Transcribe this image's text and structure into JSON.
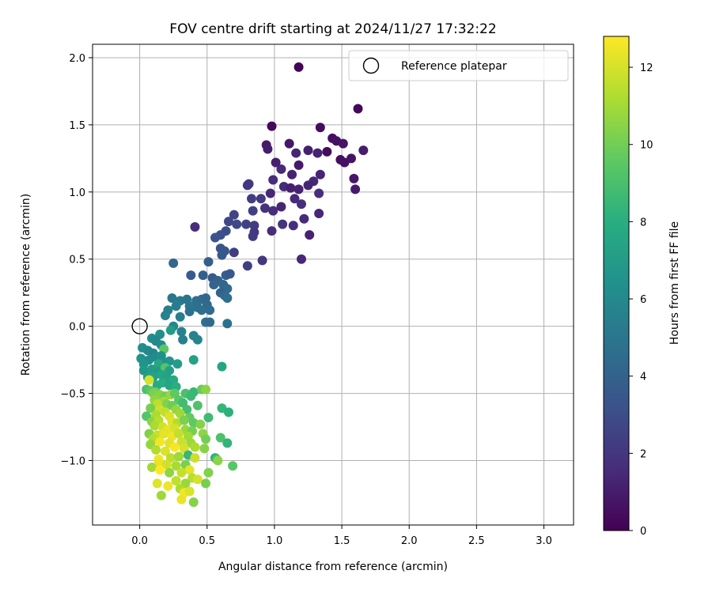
{
  "chart_data": {
    "type": "scatter",
    "title": "FOV centre drift starting at 2024/11/27 17:32:22",
    "xlabel": "Angular distance from reference (arcmin)",
    "ylabel": "Rotation from reference (arcmin)",
    "xlim": [
      -0.35,
      3.22
    ],
    "ylim": [
      -1.48,
      2.1
    ],
    "x_ticks": [
      0.0,
      0.5,
      1.0,
      1.5,
      2.0,
      2.5,
      3.0
    ],
    "x_tick_labels": [
      "0.0",
      "0.5",
      "1.0",
      "1.5",
      "2.0",
      "2.5",
      "3.0"
    ],
    "y_ticks": [
      -1.0,
      -0.5,
      0.0,
      0.5,
      1.0,
      1.5,
      2.0
    ],
    "y_tick_labels": [
      "−1.0",
      "−0.5",
      "0.0",
      "0.5",
      "1.0",
      "1.5",
      "2.0"
    ],
    "grid": true,
    "legend": {
      "position": "top-right",
      "entries": [
        {
          "label": "Reference platepar",
          "marker": "open-circle"
        }
      ]
    },
    "reference_point": {
      "x": 0.0,
      "y": 0.0
    },
    "colorbar": {
      "label": "Hours from first FF file",
      "colormap": "viridis",
      "range": [
        0,
        12.8
      ],
      "ticks": [
        0,
        2,
        4,
        6,
        8,
        10,
        12
      ],
      "tick_labels": [
        "0",
        "2",
        "4",
        "6",
        "8",
        "10",
        "12"
      ]
    },
    "points": [
      {
        "x": 1.18,
        "y": 1.93,
        "h": 0.1
      },
      {
        "x": 1.62,
        "y": 1.62,
        "h": 0.2
      },
      {
        "x": 0.98,
        "y": 1.49,
        "h": 0.3
      },
      {
        "x": 1.34,
        "y": 1.48,
        "h": 0.4
      },
      {
        "x": 1.43,
        "y": 1.4,
        "h": 0.5
      },
      {
        "x": 1.46,
        "y": 1.38,
        "h": 0.6
      },
      {
        "x": 1.51,
        "y": 1.36,
        "h": 0.7
      },
      {
        "x": 1.11,
        "y": 1.36,
        "h": 0.8
      },
      {
        "x": 0.94,
        "y": 1.35,
        "h": 0.9
      },
      {
        "x": 1.66,
        "y": 1.31,
        "h": 1.0
      },
      {
        "x": 1.25,
        "y": 1.31,
        "h": 1.1
      },
      {
        "x": 1.32,
        "y": 1.29,
        "h": 1.2
      },
      {
        "x": 1.16,
        "y": 1.29,
        "h": 1.3
      },
      {
        "x": 0.95,
        "y": 1.32,
        "h": 1.0
      },
      {
        "x": 1.39,
        "y": 1.3,
        "h": 0.4
      },
      {
        "x": 1.49,
        "y": 1.24,
        "h": 0.5
      },
      {
        "x": 1.52,
        "y": 1.22,
        "h": 0.6
      },
      {
        "x": 1.57,
        "y": 1.25,
        "h": 0.7
      },
      {
        "x": 1.01,
        "y": 1.22,
        "h": 1.1
      },
      {
        "x": 1.18,
        "y": 1.2,
        "h": 0.9
      },
      {
        "x": 1.05,
        "y": 1.17,
        "h": 1.5
      },
      {
        "x": 1.13,
        "y": 1.13,
        "h": 1.2
      },
      {
        "x": 1.34,
        "y": 1.13,
        "h": 1.3
      },
      {
        "x": 1.59,
        "y": 1.1,
        "h": 0.8
      },
      {
        "x": 1.29,
        "y": 1.08,
        "h": 1.4
      },
      {
        "x": 0.99,
        "y": 1.09,
        "h": 1.6
      },
      {
        "x": 1.07,
        "y": 1.04,
        "h": 1.5
      },
      {
        "x": 1.12,
        "y": 1.03,
        "h": 1.1
      },
      {
        "x": 1.18,
        "y": 1.02,
        "h": 1.2
      },
      {
        "x": 1.25,
        "y": 1.05,
        "h": 1.3
      },
      {
        "x": 1.6,
        "y": 1.02,
        "h": 0.9
      },
      {
        "x": 0.97,
        "y": 0.99,
        "h": 1.4
      },
      {
        "x": 1.33,
        "y": 0.99,
        "h": 1.6
      },
      {
        "x": 0.81,
        "y": 1.06,
        "h": 2.2
      },
      {
        "x": 0.8,
        "y": 1.05,
        "h": 2.0
      },
      {
        "x": 1.15,
        "y": 0.95,
        "h": 1.5
      },
      {
        "x": 0.83,
        "y": 0.95,
        "h": 2.3
      },
      {
        "x": 0.9,
        "y": 0.95,
        "h": 2.1
      },
      {
        "x": 1.2,
        "y": 0.91,
        "h": 1.7
      },
      {
        "x": 1.05,
        "y": 0.89,
        "h": 1.3
      },
      {
        "x": 0.93,
        "y": 0.88,
        "h": 1.8
      },
      {
        "x": 0.99,
        "y": 0.86,
        "h": 1.6
      },
      {
        "x": 0.84,
        "y": 0.86,
        "h": 2.4
      },
      {
        "x": 0.7,
        "y": 0.83,
        "h": 2.6
      },
      {
        "x": 1.33,
        "y": 0.84,
        "h": 1.4
      },
      {
        "x": 1.22,
        "y": 0.8,
        "h": 1.5
      },
      {
        "x": 0.66,
        "y": 0.78,
        "h": 2.7
      },
      {
        "x": 0.72,
        "y": 0.76,
        "h": 2.8
      },
      {
        "x": 0.79,
        "y": 0.76,
        "h": 2.5
      },
      {
        "x": 1.06,
        "y": 0.76,
        "h": 1.9
      },
      {
        "x": 1.14,
        "y": 0.75,
        "h": 1.7
      },
      {
        "x": 0.85,
        "y": 0.75,
        "h": 2.3
      },
      {
        "x": 0.41,
        "y": 0.74,
        "h": 1.6
      },
      {
        "x": 0.64,
        "y": 0.71,
        "h": 3.0
      },
      {
        "x": 0.6,
        "y": 0.68,
        "h": 3.1
      },
      {
        "x": 0.85,
        "y": 0.7,
        "h": 2.1
      },
      {
        "x": 0.98,
        "y": 0.71,
        "h": 1.6
      },
      {
        "x": 1.26,
        "y": 0.68,
        "h": 1.2
      },
      {
        "x": 0.84,
        "y": 0.67,
        "h": 2.2
      },
      {
        "x": 0.56,
        "y": 0.66,
        "h": 3.2
      },
      {
        "x": 0.6,
        "y": 0.58,
        "h": 3.3
      },
      {
        "x": 0.63,
        "y": 0.56,
        "h": 3.4
      },
      {
        "x": 0.7,
        "y": 0.55,
        "h": 2.3
      },
      {
        "x": 0.61,
        "y": 0.53,
        "h": 3.5
      },
      {
        "x": 0.91,
        "y": 0.49,
        "h": 2.0
      },
      {
        "x": 1.2,
        "y": 0.5,
        "h": 1.4
      },
      {
        "x": 0.51,
        "y": 0.48,
        "h": 3.8
      },
      {
        "x": 0.25,
        "y": 0.47,
        "h": 4.2
      },
      {
        "x": 0.8,
        "y": 0.45,
        "h": 2.4
      },
      {
        "x": 0.38,
        "y": 0.38,
        "h": 3.7
      },
      {
        "x": 0.47,
        "y": 0.38,
        "h": 3.9
      },
      {
        "x": 0.54,
        "y": 0.36,
        "h": 3.6
      },
      {
        "x": 0.64,
        "y": 0.38,
        "h": 3.8
      },
      {
        "x": 0.67,
        "y": 0.39,
        "h": 3.5
      },
      {
        "x": 0.58,
        "y": 0.34,
        "h": 4.0
      },
      {
        "x": 0.55,
        "y": 0.31,
        "h": 4.1
      },
      {
        "x": 0.62,
        "y": 0.31,
        "h": 4.2
      },
      {
        "x": 0.65,
        "y": 0.28,
        "h": 4.4
      },
      {
        "x": 0.6,
        "y": 0.25,
        "h": 3.9
      },
      {
        "x": 0.63,
        "y": 0.23,
        "h": 4.3
      },
      {
        "x": 0.65,
        "y": 0.21,
        "h": 4.6
      },
      {
        "x": 0.24,
        "y": 0.21,
        "h": 5.0
      },
      {
        "x": 0.3,
        "y": 0.19,
        "h": 5.2
      },
      {
        "x": 0.35,
        "y": 0.2,
        "h": 4.9
      },
      {
        "x": 0.42,
        "y": 0.19,
        "h": 4.7
      },
      {
        "x": 0.46,
        "y": 0.2,
        "h": 4.5
      },
      {
        "x": 0.49,
        "y": 0.21,
        "h": 4.3
      },
      {
        "x": 0.37,
        "y": 0.15,
        "h": 5.0
      },
      {
        "x": 0.43,
        "y": 0.14,
        "h": 4.8
      },
      {
        "x": 0.5,
        "y": 0.16,
        "h": 4.4
      },
      {
        "x": 0.27,
        "y": 0.15,
        "h": 5.3
      },
      {
        "x": 0.21,
        "y": 0.12,
        "h": 5.5
      },
      {
        "x": 0.37,
        "y": 0.11,
        "h": 4.8
      },
      {
        "x": 0.46,
        "y": 0.12,
        "h": 4.6
      },
      {
        "x": 0.52,
        "y": 0.12,
        "h": 4.5
      },
      {
        "x": 0.19,
        "y": 0.08,
        "h": 5.6
      },
      {
        "x": 0.3,
        "y": 0.07,
        "h": 5.4
      },
      {
        "x": 0.49,
        "y": 0.03,
        "h": 4.7
      },
      {
        "x": 0.52,
        "y": 0.03,
        "h": 4.4
      },
      {
        "x": 0.65,
        "y": 0.02,
        "h": 4.8
      },
      {
        "x": 0.25,
        "y": 0.0,
        "h": 5.9
      },
      {
        "x": 0.31,
        "y": -0.04,
        "h": 5.7
      },
      {
        "x": 0.15,
        "y": -0.06,
        "h": 6.3
      },
      {
        "x": 0.4,
        "y": -0.07,
        "h": 5.6
      },
      {
        "x": 0.32,
        "y": -0.1,
        "h": 5.5
      },
      {
        "x": 0.43,
        "y": -0.1,
        "h": 5.8
      },
      {
        "x": 0.23,
        "y": -0.03,
        "h": 7.0
      },
      {
        "x": 0.09,
        "y": -0.09,
        "h": 6.2
      },
      {
        "x": 0.12,
        "y": -0.11,
        "h": 6.0
      },
      {
        "x": 0.16,
        "y": -0.14,
        "h": 6.1
      },
      {
        "x": 0.02,
        "y": -0.16,
        "h": 6.3
      },
      {
        "x": 0.06,
        "y": -0.18,
        "h": 6.0
      },
      {
        "x": 0.1,
        "y": -0.2,
        "h": 5.8
      },
      {
        "x": 0.18,
        "y": -0.17,
        "h": 9.5
      },
      {
        "x": 0.01,
        "y": -0.24,
        "h": 6.5
      },
      {
        "x": 0.07,
        "y": -0.25,
        "h": 6.2
      },
      {
        "x": 0.12,
        "y": -0.23,
        "h": 6.1
      },
      {
        "x": 0.16,
        "y": -0.22,
        "h": 6.4
      },
      {
        "x": 0.4,
        "y": -0.25,
        "h": 7.3
      },
      {
        "x": 0.03,
        "y": -0.28,
        "h": 6.6
      },
      {
        "x": 0.19,
        "y": -0.27,
        "h": 6.4
      },
      {
        "x": 0.22,
        "y": -0.26,
        "h": 6.7
      },
      {
        "x": 0.28,
        "y": -0.28,
        "h": 7.0
      },
      {
        "x": 0.14,
        "y": -0.28,
        "h": 7.5
      },
      {
        "x": 0.61,
        "y": -0.3,
        "h": 7.5
      },
      {
        "x": 0.03,
        "y": -0.33,
        "h": 6.8
      },
      {
        "x": 0.09,
        "y": -0.32,
        "h": 7.0
      },
      {
        "x": 0.14,
        "y": -0.34,
        "h": 6.9
      },
      {
        "x": 0.19,
        "y": -0.31,
        "h": 9.3
      },
      {
        "x": 0.22,
        "y": -0.33,
        "h": 7.2
      },
      {
        "x": 0.06,
        "y": -0.38,
        "h": 7.1
      },
      {
        "x": 0.1,
        "y": -0.38,
        "h": 7.4
      },
      {
        "x": 0.16,
        "y": -0.36,
        "h": 7.6
      },
      {
        "x": 0.2,
        "y": -0.38,
        "h": 7.3
      },
      {
        "x": 0.25,
        "y": -0.4,
        "h": 7.8
      },
      {
        "x": 0.07,
        "y": -0.4,
        "h": 12.0
      },
      {
        "x": 0.13,
        "y": -0.44,
        "h": 7.7
      },
      {
        "x": 0.17,
        "y": -0.42,
        "h": 7.9
      },
      {
        "x": 0.22,
        "y": -0.44,
        "h": 7.5
      },
      {
        "x": 0.27,
        "y": -0.45,
        "h": 8.0
      },
      {
        "x": 0.05,
        "y": -0.47,
        "h": 9.0
      },
      {
        "x": 0.08,
        "y": -0.48,
        "h": 9.5
      },
      {
        "x": 0.12,
        "y": -0.49,
        "h": 9.8
      },
      {
        "x": 0.4,
        "y": -0.49,
        "h": 8.5
      },
      {
        "x": 0.46,
        "y": -0.47,
        "h": 9.8
      },
      {
        "x": 0.49,
        "y": -0.47,
        "h": 10.5
      },
      {
        "x": 0.1,
        "y": -0.5,
        "h": 10.2
      },
      {
        "x": 0.15,
        "y": -0.51,
        "h": 10.4
      },
      {
        "x": 0.19,
        "y": -0.52,
        "h": 10.0
      },
      {
        "x": 0.23,
        "y": -0.51,
        "h": 10.8
      },
      {
        "x": 0.26,
        "y": -0.5,
        "h": 9.6
      },
      {
        "x": 0.34,
        "y": -0.5,
        "h": 9.0
      },
      {
        "x": 0.38,
        "y": -0.52,
        "h": 8.6
      },
      {
        "x": 0.11,
        "y": -0.55,
        "h": 10.6
      },
      {
        "x": 0.18,
        "y": -0.56,
        "h": 11.0
      },
      {
        "x": 0.29,
        "y": -0.55,
        "h": 9.4
      },
      {
        "x": 0.13,
        "y": -0.58,
        "h": 11.5
      },
      {
        "x": 0.2,
        "y": -0.58,
        "h": 10.3
      },
      {
        "x": 0.24,
        "y": -0.59,
        "h": 9.9
      },
      {
        "x": 0.32,
        "y": -0.57,
        "h": 8.8
      },
      {
        "x": 0.43,
        "y": -0.59,
        "h": 9.2
      },
      {
        "x": 0.08,
        "y": -0.61,
        "h": 10.1
      },
      {
        "x": 0.15,
        "y": -0.62,
        "h": 11.8
      },
      {
        "x": 0.27,
        "y": -0.62,
        "h": 10.7
      },
      {
        "x": 0.35,
        "y": -0.62,
        "h": 8.9
      },
      {
        "x": 0.61,
        "y": -0.61,
        "h": 8.4
      },
      {
        "x": 0.66,
        "y": -0.64,
        "h": 8.1
      },
      {
        "x": 0.12,
        "y": -0.66,
        "h": 11.2
      },
      {
        "x": 0.19,
        "y": -0.64,
        "h": 11.6
      },
      {
        "x": 0.22,
        "y": -0.67,
        "h": 12.1
      },
      {
        "x": 0.3,
        "y": -0.65,
        "h": 10.9
      },
      {
        "x": 0.05,
        "y": -0.67,
        "h": 9.3
      },
      {
        "x": 0.37,
        "y": -0.68,
        "h": 9.7
      },
      {
        "x": 0.51,
        "y": -0.68,
        "h": 8.7
      },
      {
        "x": 0.09,
        "y": -0.71,
        "h": 10.5
      },
      {
        "x": 0.14,
        "y": -0.7,
        "h": 11.4
      },
      {
        "x": 0.24,
        "y": -0.71,
        "h": 12.2
      },
      {
        "x": 0.28,
        "y": -0.72,
        "h": 11.3
      },
      {
        "x": 0.33,
        "y": -0.7,
        "h": 10.2
      },
      {
        "x": 0.4,
        "y": -0.72,
        "h": 9.6
      },
      {
        "x": 0.45,
        "y": -0.73,
        "h": 10.4
      },
      {
        "x": 0.11,
        "y": -0.74,
        "h": 11.1
      },
      {
        "x": 0.17,
        "y": -0.75,
        "h": 11.9
      },
      {
        "x": 0.21,
        "y": -0.77,
        "h": 12.4
      },
      {
        "x": 0.26,
        "y": -0.76,
        "h": 12.0
      },
      {
        "x": 0.34,
        "y": -0.77,
        "h": 10.8
      },
      {
        "x": 0.39,
        "y": -0.78,
        "h": 10.1
      },
      {
        "x": 0.07,
        "y": -0.8,
        "h": 10.3
      },
      {
        "x": 0.13,
        "y": -0.81,
        "h": 11.7
      },
      {
        "x": 0.18,
        "y": -0.8,
        "h": 12.3
      },
      {
        "x": 0.24,
        "y": -0.82,
        "h": 12.5
      },
      {
        "x": 0.29,
        "y": -0.8,
        "h": 11.6
      },
      {
        "x": 0.36,
        "y": -0.82,
        "h": 11.0
      },
      {
        "x": 0.47,
        "y": -0.8,
        "h": 10.6
      },
      {
        "x": 0.49,
        "y": -0.84,
        "h": 10.0
      },
      {
        "x": 0.1,
        "y": -0.84,
        "h": 11.4
      },
      {
        "x": 0.15,
        "y": -0.86,
        "h": 12.6
      },
      {
        "x": 0.22,
        "y": -0.87,
        "h": 12.2
      },
      {
        "x": 0.31,
        "y": -0.86,
        "h": 11.8
      },
      {
        "x": 0.38,
        "y": -0.87,
        "h": 10.9
      },
      {
        "x": 0.6,
        "y": -0.83,
        "h": 9.1
      },
      {
        "x": 0.65,
        "y": -0.87,
        "h": 8.3
      },
      {
        "x": 0.08,
        "y": -0.88,
        "h": 10.7
      },
      {
        "x": 0.26,
        "y": -0.9,
        "h": 12.7
      },
      {
        "x": 0.33,
        "y": -0.91,
        "h": 12.0
      },
      {
        "x": 0.41,
        "y": -0.9,
        "h": 11.2
      },
      {
        "x": 0.48,
        "y": -0.91,
        "h": 10.4
      },
      {
        "x": 0.12,
        "y": -0.92,
        "h": 11.3
      },
      {
        "x": 0.19,
        "y": -0.93,
        "h": 12.1
      },
      {
        "x": 0.36,
        "y": -0.96,
        "h": 8.5
      },
      {
        "x": 0.56,
        "y": -0.98,
        "h": 8.0
      },
      {
        "x": 0.57,
        "y": -0.99,
        "h": 8.7
      },
      {
        "x": 0.14,
        "y": -0.99,
        "h": 12.6
      },
      {
        "x": 0.23,
        "y": -0.98,
        "h": 11.5
      },
      {
        "x": 0.29,
        "y": -0.97,
        "h": 10.9
      },
      {
        "x": 0.41,
        "y": -0.98,
        "h": 11.8
      },
      {
        "x": 0.58,
        "y": -1.0,
        "h": 10.5
      },
      {
        "x": 0.14,
        "y": -1.02,
        "h": 12.4
      },
      {
        "x": 0.2,
        "y": -1.03,
        "h": 11.9
      },
      {
        "x": 0.27,
        "y": -1.04,
        "h": 11.1
      },
      {
        "x": 0.34,
        "y": -1.03,
        "h": 10.2
      },
      {
        "x": 0.69,
        "y": -1.04,
        "h": 9.4
      },
      {
        "x": 0.09,
        "y": -1.05,
        "h": 11.0
      },
      {
        "x": 0.15,
        "y": -1.07,
        "h": 12.8
      },
      {
        "x": 0.37,
        "y": -1.07,
        "h": 12.3
      },
      {
        "x": 0.22,
        "y": -1.09,
        "h": 10.6
      },
      {
        "x": 0.31,
        "y": -1.09,
        "h": 11.7
      },
      {
        "x": 0.51,
        "y": -1.09,
        "h": 10.3
      },
      {
        "x": 0.39,
        "y": -1.13,
        "h": 11.4
      },
      {
        "x": 0.43,
        "y": -1.14,
        "h": 12.0
      },
      {
        "x": 0.27,
        "y": -1.15,
        "h": 11.6
      },
      {
        "x": 0.13,
        "y": -1.17,
        "h": 12.2
      },
      {
        "x": 0.34,
        "y": -1.17,
        "h": 10.8
      },
      {
        "x": 0.49,
        "y": -1.17,
        "h": 10.1
      },
      {
        "x": 0.21,
        "y": -1.19,
        "h": 12.5
      },
      {
        "x": 0.3,
        "y": -1.21,
        "h": 11.2
      },
      {
        "x": 0.33,
        "y": -1.24,
        "h": 12.6
      },
      {
        "x": 0.37,
        "y": -1.23,
        "h": 12.1
      },
      {
        "x": 0.16,
        "y": -1.26,
        "h": 10.9
      },
      {
        "x": 0.31,
        "y": -1.29,
        "h": 12.4
      },
      {
        "x": 0.4,
        "y": -1.31,
        "h": 10.4
      }
    ]
  }
}
